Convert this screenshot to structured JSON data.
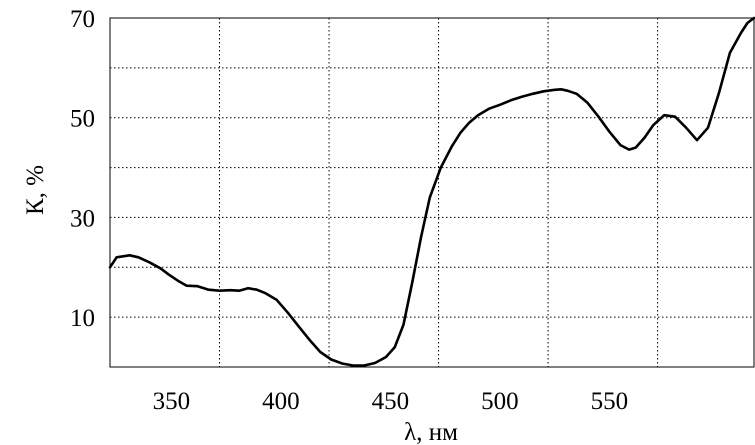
{
  "chart_data": {
    "type": "line",
    "title": "",
    "xlabel": "λ, нм",
    "ylabel": "К, %",
    "xlim": [
      322,
      616
    ],
    "ylim": [
      0,
      70
    ],
    "x_ticks": [
      350,
      400,
      450,
      500,
      550
    ],
    "x_tick_labels": [
      "350",
      "400",
      "450",
      "500",
      "550"
    ],
    "y_ticks": [
      10,
      30,
      50,
      70
    ],
    "y_tick_labels": [
      "10",
      "30",
      "50",
      "70"
    ],
    "x_gridlines": [
      372,
      422,
      472,
      522,
      572
    ],
    "y_gridlines": [
      10,
      20,
      30,
      40,
      50,
      60
    ],
    "grid": true,
    "legend": "none",
    "series": [
      {
        "x": [
          322,
          325,
          331,
          335,
          340,
          345,
          349,
          353,
          357,
          362,
          367,
          372,
          377,
          381,
          385,
          389,
          393,
          398,
          403,
          408,
          413,
          418,
          423,
          428,
          433,
          438,
          443,
          448,
          452,
          456,
          460,
          464,
          468,
          473,
          478,
          482,
          486,
          490,
          495,
          500,
          505,
          510,
          515,
          520,
          525,
          528,
          531,
          535,
          540,
          545,
          550,
          555,
          559,
          562,
          566,
          570,
          575,
          580,
          585,
          590,
          595,
          600,
          605,
          610,
          613,
          616
        ],
        "y": [
          20,
          22,
          22.4,
          22,
          21,
          19.8,
          18.5,
          17.3,
          16.3,
          16.2,
          15.5,
          15.3,
          15.4,
          15.3,
          15.8,
          15.5,
          14.8,
          13.5,
          11,
          8.2,
          5.5,
          3,
          1.5,
          0.7,
          0.3,
          0.3,
          0.8,
          2,
          4,
          8.5,
          17,
          26,
          34,
          40,
          44.2,
          47,
          49,
          50.5,
          51.8,
          52.6,
          53.5,
          54.2,
          54.8,
          55.3,
          55.6,
          55.7,
          55.4,
          54.8,
          53,
          50.2,
          47.2,
          44.5,
          43.6,
          44,
          46,
          48.5,
          50.5,
          50.2,
          48,
          45.5,
          48,
          55,
          63,
          67,
          69,
          70
        ]
      }
    ]
  }
}
